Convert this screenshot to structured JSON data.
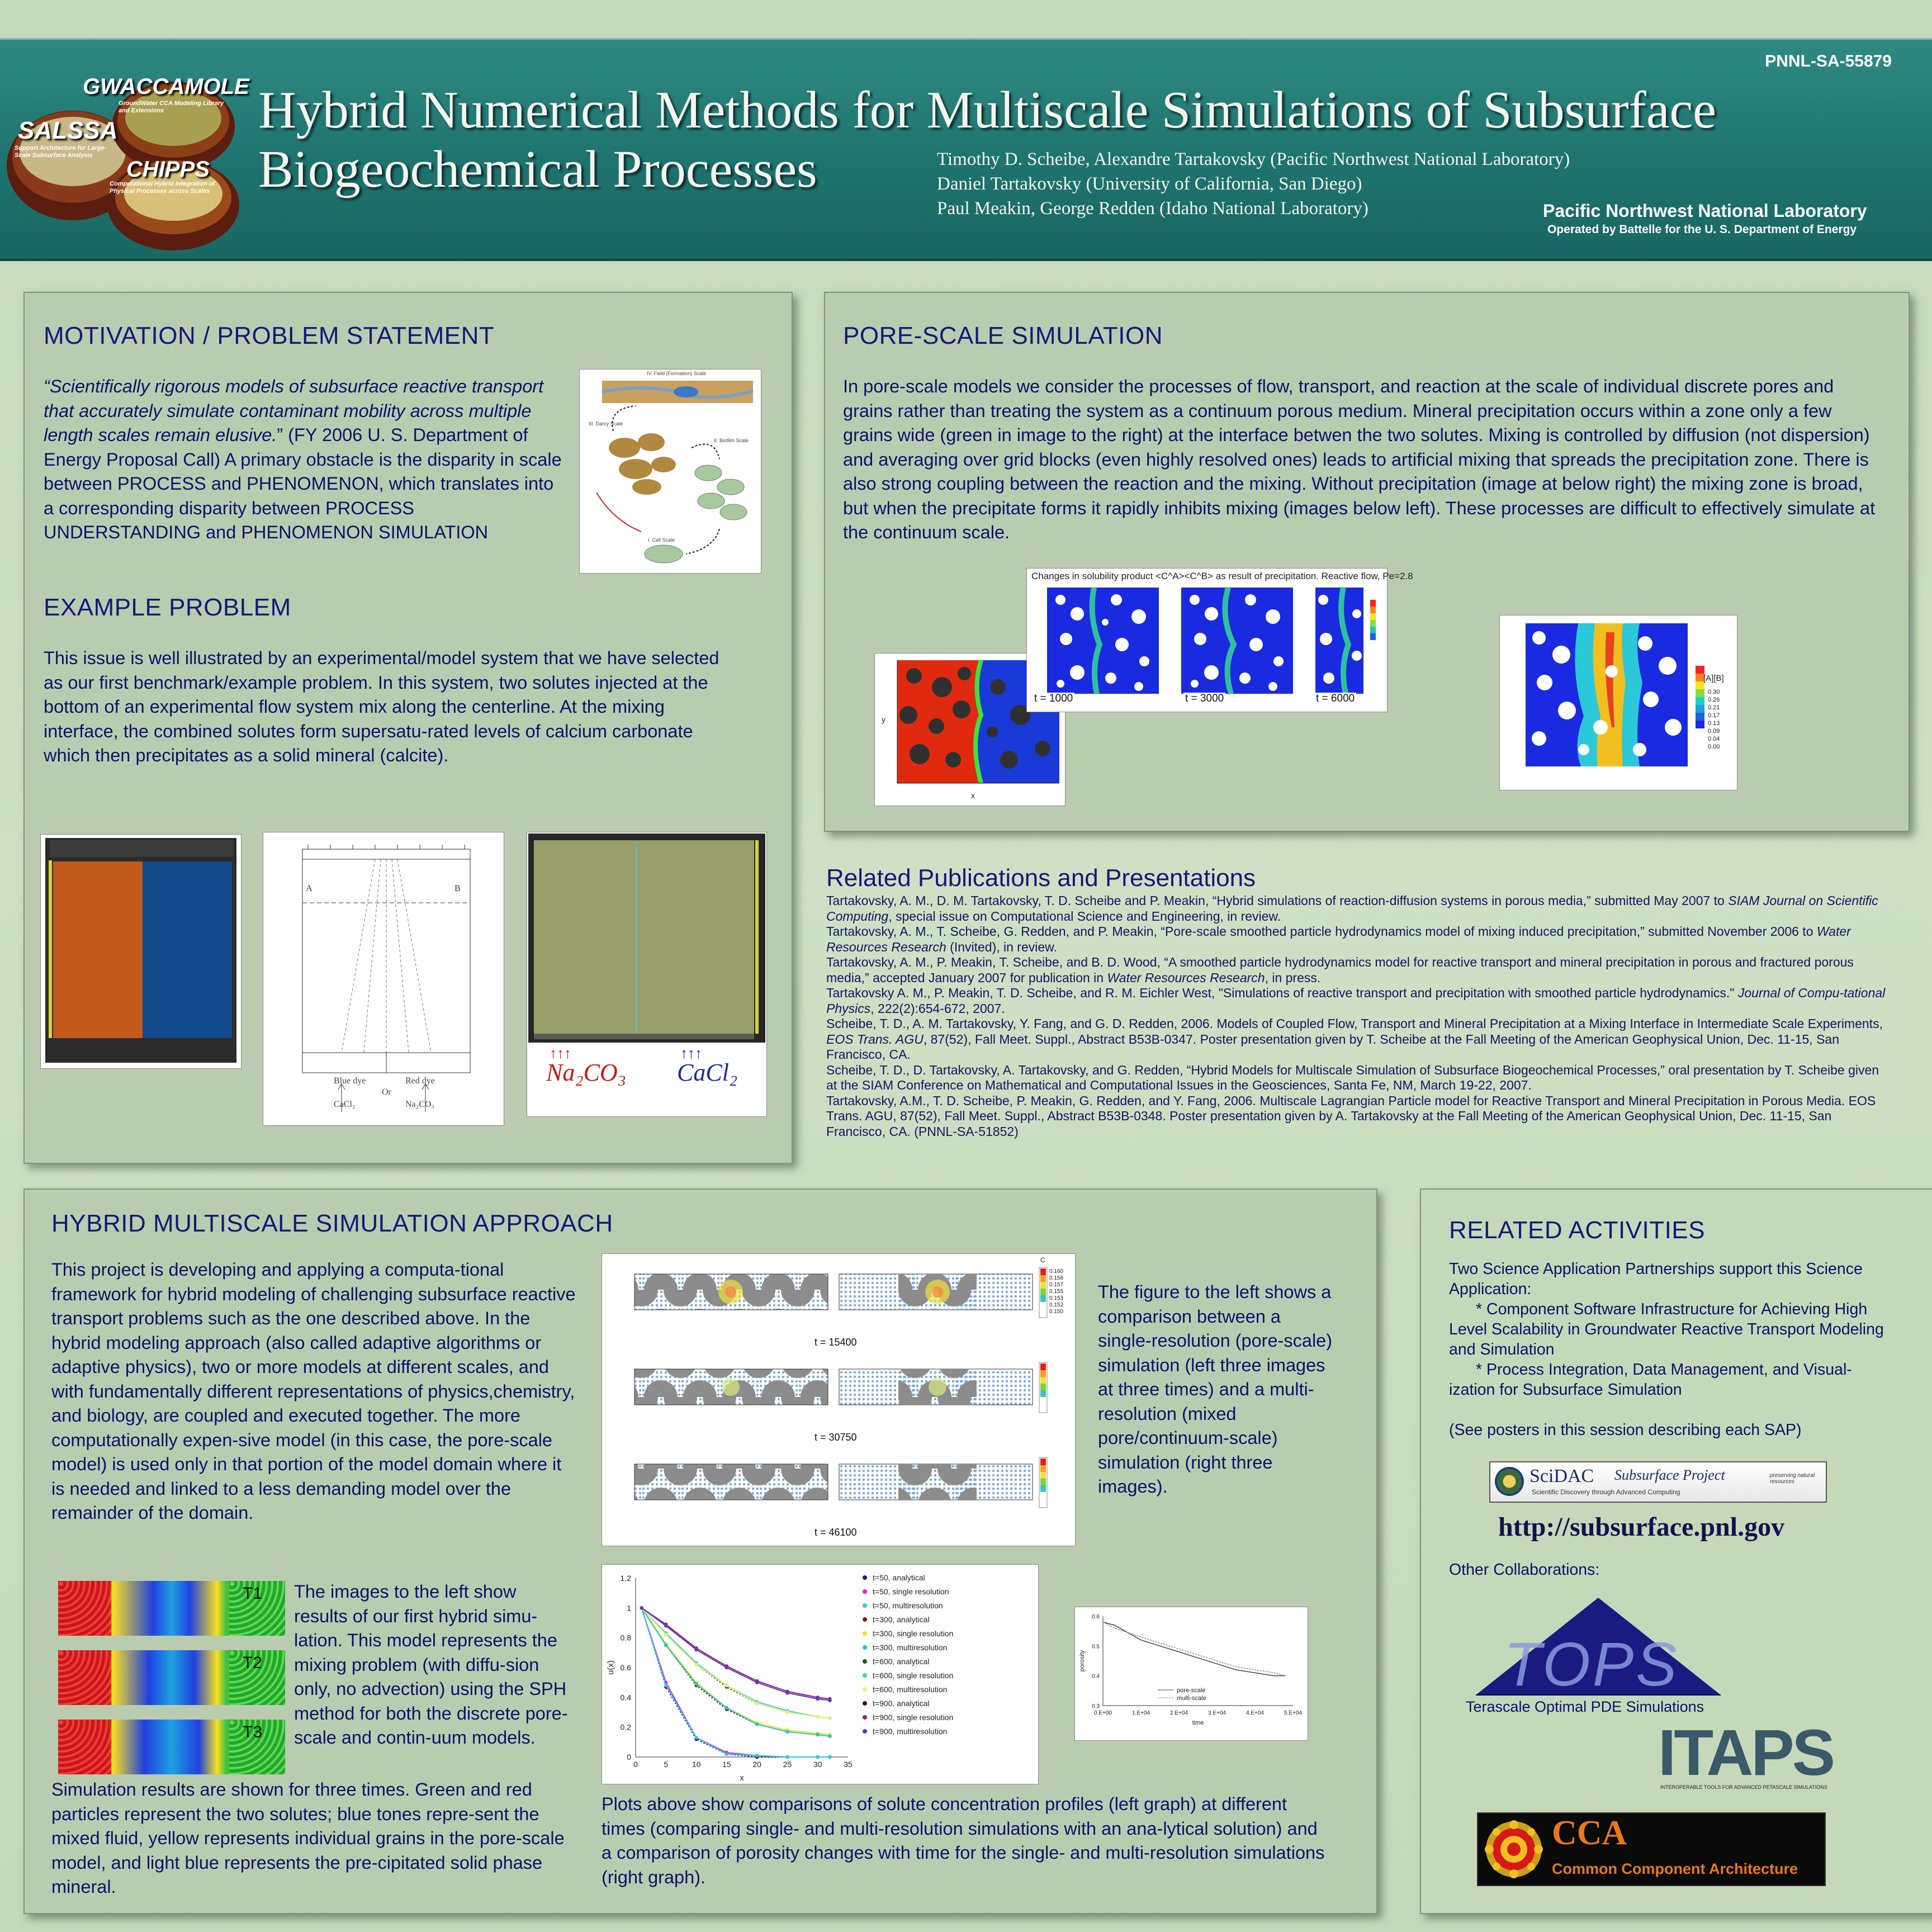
{
  "header": {
    "report_number": "PNNL-SA-55879",
    "title_line1": "Hybrid Numerical Methods for Multiscale Simulations of Subsurface",
    "title_line2": "Biogeochemical Processes",
    "authors": [
      "Timothy D. Scheibe, Alexandre Tartakovsky (Pacific Northwest National Laboratory)",
      "Daniel Tartakovsky (University of California, San Diego)",
      "Paul Meakin, George Redden (Idaho National Laboratory)"
    ],
    "lab_name": "Pacific Northwest National Laboratory",
    "lab_sub": "Operated by Battelle for the U. S. Department of Energy",
    "logo": {
      "gwaccamole": "GWACCAMOLE",
      "gwaccamole_sub": "GroundWater CCA Modeling Library and Extensions",
      "salssa": "SALSSA",
      "salssa_sub": "Support Architecture for Large-Scale Subsurface Analysis",
      "chipps": "CHIPPS",
      "chipps_sub": "Computational Hybrid Integration of Physical Processes across Scales"
    }
  },
  "motivation": {
    "heading": "MOTIVATION / PROBLEM STATEMENT",
    "quote": "“Scientifically rigorous models of subsurface reactive transport that accurately simulate contaminant mobility across multiple length scales remain elusive.",
    "rest": "”  (FY 2006 U. S. Department of Energy Proposal Call)  A primary obstacle is the disparity in scale between PROCESS and PHENOMENON, which translates into a corresponding disparity between PROCESS UNDERSTANDING and PHENOMENON SIMULATION",
    "scale_labels": [
      "I. Cell Scale",
      "II. Biofilm Scale",
      "III. Darcy Scale",
      "IV. Field (Formation) Scale"
    ]
  },
  "example": {
    "heading": "EXAMPLE PROBLEM",
    "text": "This issue is well illustrated by an experimental/model system that we have selected as our first benchmark/example problem.  In this system, two solutes injected at the bottom of an experimental flow system mix along the centerline.  At the mixing interface, the combined solutes form supersatu-rated levels of calcium carbonate which then precipitates as a solid mineral (calcite).",
    "diagram": {
      "a": "A",
      "b": "B",
      "blue": "Blue dye",
      "cacl": "CaCl₂",
      "or": "Or",
      "red": "Red dye",
      "na": "Na₂CO₃"
    },
    "na2co3": "Na₂CO₃",
    "cacl2": "CaCl₂"
  },
  "pore": {
    "heading": "PORE-SCALE SIMULATION",
    "text": "In pore-scale models we consider the processes of flow, transport, and reaction at the scale of individual discrete pores and grains rather than treating the system as a continuum porous medium.  Mineral precipitation occurs within a zone only a few grains wide (green in image to the right) at the interface betwen the two solutes.  Mixing is controlled by diffusion (not dispersion) and averaging over grid blocks (even highly resolved ones) leads to artificial mixing that spreads the precipitation zone.  There is also strong coupling between the reaction and the mixing.  Without precipitation (image at below right) the mixing zone is broad, but when the precipitate forms it rapidly inhibits mixing (images below left).  These processes are difficult to effectively simulate at the continuum scale.",
    "fig_caption": "Changes in solubility product <C^A><C^B> as result of precipitation. Reactive flow, Pe=2.8",
    "times": [
      "t = 1000",
      "t = 3000",
      "t = 6000"
    ],
    "colorbar_label": "[A][B]",
    "colorbar_values": [
      "0.30",
      "0.26",
      "0.21",
      "0.17",
      "0.13",
      "0.09",
      "0.04",
      "0.00"
    ],
    "axis_x": "x",
    "axis_y": "y"
  },
  "publications": {
    "heading": "Related Publications and Presentations",
    "entries": [
      [
        "Tartakovsky, A. M., D. M. Tartakovsky, T. D. Scheibe and P. Meakin, “Hybrid simulations of reaction-diffusion systems in porous media,” submitted May 2007 to ",
        "SIAM Journal on Scientific Computing",
        ", special issue on Computational Science and Engineering, in review."
      ],
      [
        "Tartakovsky, A. M., T. Scheibe, G. Redden, and P. Meakin, “Pore-scale smoothed particle hydrodynamics model of mixing induced precipitation,” submitted November 2006 to ",
        "Water Resources Research",
        " (Invited), in review."
      ],
      [
        "Tartakovsky, A. M., P. Meakin, T. Scheibe, and B. D. Wood, “A smoothed particle hydrodynamics model for reactive transport and mineral precipitation in porous and fractured porous media,” accepted January 2007 for publication in ",
        "Water Resources Research",
        ", in press."
      ],
      [
        "Tartakovsky A. M., P. Meakin, T. D. Scheibe, and R. M. Eichler West, \"Simulations of reactive transport and precipitation with smoothed particle hydrodynamics.\"  ",
        "Journal of Compu-tational Physics",
        ", 222(2):654-672, 2007."
      ],
      [
        "Scheibe, T. D., A. M. Tartakovsky, Y. Fang, and G. D. Redden, 2006.  Models of Coupled Flow, Transport and Mineral Precipitation at a Mixing Interface in Intermediate Scale Experiments, ",
        "EOS Trans. AGU",
        ", 87(52), Fall Meet. Suppl., Abstract B53B-0347.  Poster presentation given by T. Scheibe at the Fall Meeting of the American Geophysical Union, Dec. 11-15, San Francisco, CA."
      ],
      [
        "Scheibe, T. D., D. Tartakovsky, A. Tartakovsky, and G. Redden, “Hybrid Models for Multiscale Simulation of Subsurface Biogeochemical Processes,” oral presentation by T. Scheibe given at the SIAM Conference on Mathematical and Computational Issues in the Geosciences, Santa Fe, NM, March 19-22, 2007.",
        "",
        ""
      ],
      [
        "Tartakovsky, A.M., T. D. Scheibe, P. Meakin, G. Redden, and Y. Fang, 2006. Multiscale Lagrangian Particle model for Reactive Transport and Mineral Precipitation in Porous Media. EOS Trans. AGU, 87(52), Fall Meet. Suppl., Abstract B53B-0348.  Poster presentation given by A. Tartakovsky at the Fall Meeting of the American Geophysical Union, Dec. 11-15, San Francisco, CA.  (PNNL-SA-51852)",
        "",
        ""
      ]
    ]
  },
  "hybrid": {
    "heading": "HYBRID MULTISCALE SIMULATION APPROACH",
    "text1": "This project is developing and applying a computa-tional framework for hybrid modeling of challenging subsurface reactive transport problems such as the one described above.  In the hybrid modeling approach (also called adaptive algorithms or adaptive physics), two or more models at different scales, and with fundamentally different representations of physics,chemistry, and biology, are coupled and executed together.  The more computationally expen-sive model (in this case, the pore-scale model) is used only in that portion of the model domain where it is needed and linked to a less demanding model over the remainder of the domain.",
    "text2": "The images to the left show results of our first hybrid simu-lation.  This model represents the mixing problem (with diffu-sion only, no advection) using the SPH method for both the discrete pore-scale and contin-uum models.",
    "text3": "Simulation results are shown for three times. Green and red particles represent the two solutes; blue tones repre-sent the mixed fluid, yellow represents individual grains in the pore-scale model, and light blue represents the pre-cipitated solid phase mineral.",
    "t_labels": [
      "T1",
      "T2",
      "T3"
    ],
    "figure_text": "The figure to the left shows a comparison between a single-resolution (pore-scale) simulation (left three images at three times) and a multi-resolution (mixed pore/continuum-scale) simulation (right three images).",
    "times": [
      "t = 15400",
      "t = 30750",
      "t = 46100"
    ],
    "colorbar_title": "C",
    "colorbar_values": [
      "0.160",
      "0.158",
      "0.157",
      "0.155",
      "0.153",
      "0.152",
      "0.150"
    ],
    "plots_text": "Plots above show comparisons of solute concentration profiles (left graph) at different times (comparing single- and multi-resolution simulations with an ana-lytical solution) and a comparison of porosity changes with time for the single- and multi-resolution simulations (right graph)."
  },
  "chart_data": [
    {
      "type": "line",
      "xlabel": "x",
      "ylabel": "u(x)",
      "xlim": [
        0,
        35
      ],
      "ylim": [
        0,
        1.2
      ],
      "xticks": [
        0,
        5,
        10,
        15,
        20,
        25,
        30,
        35
      ],
      "yticks": [
        0,
        0.2,
        0.4,
        0.6,
        0.8,
        1,
        1.2
      ],
      "x": [
        1,
        5,
        10,
        15,
        20,
        25,
        30,
        32
      ],
      "series": [
        {
          "name": "t=50, analytical",
          "color": "#1a1a7a",
          "values": [
            1.0,
            0.47,
            0.12,
            0.02,
            0.0,
            0.0,
            0.0,
            0.0
          ]
        },
        {
          "name": "t=50, single resolution",
          "color": "#e020e0",
          "values": [
            1.0,
            0.5,
            0.13,
            0.03,
            0.01,
            0.0,
            0.0,
            0.0
          ]
        },
        {
          "name": "t=50, multiresolution",
          "color": "#30c8d8",
          "values": [
            1.0,
            0.48,
            0.13,
            0.02,
            0.01,
            0.0,
            0.0,
            0.0
          ]
        },
        {
          "name": "t=300, analytical",
          "color": "#7a2020",
          "values": [
            1.0,
            0.75,
            0.48,
            0.32,
            0.22,
            0.17,
            0.15,
            0.14
          ]
        },
        {
          "name": "t=300, single resolution",
          "color": "#e8e820",
          "values": [
            1.0,
            0.76,
            0.5,
            0.33,
            0.23,
            0.18,
            0.16,
            0.15
          ]
        },
        {
          "name": "t=300, multiresolution",
          "color": "#20c8c8",
          "values": [
            1.0,
            0.75,
            0.49,
            0.33,
            0.22,
            0.17,
            0.15,
            0.14
          ]
        },
        {
          "name": "t=600, analytical",
          "color": "#1a5a1a",
          "values": [
            1.0,
            0.82,
            0.62,
            0.47,
            0.36,
            0.3,
            0.27,
            0.26
          ]
        },
        {
          "name": "t=600, single resolution",
          "color": "#40d0d0",
          "values": [
            1.0,
            0.83,
            0.63,
            0.48,
            0.37,
            0.31,
            0.27,
            0.26
          ]
        },
        {
          "name": "t=600, multiresolution",
          "color": "#f0f070",
          "values": [
            1.0,
            0.82,
            0.62,
            0.48,
            0.36,
            0.3,
            0.27,
            0.26
          ]
        },
        {
          "name": "t=900, analytical",
          "color": "#3a0a3a",
          "values": [
            1.0,
            0.88,
            0.72,
            0.6,
            0.5,
            0.43,
            0.39,
            0.38
          ]
        },
        {
          "name": "t=900, single resolution",
          "color": "#8a208a",
          "values": [
            1.0,
            0.89,
            0.73,
            0.61,
            0.51,
            0.44,
            0.4,
            0.39
          ]
        },
        {
          "name": "t=900, multiresolution",
          "color": "#6a3ab0",
          "values": [
            1.0,
            0.88,
            0.72,
            0.6,
            0.5,
            0.43,
            0.39,
            0.38
          ]
        }
      ]
    },
    {
      "type": "line",
      "xlabel": "time",
      "ylabel": "porosity",
      "xlim": [
        0,
        50000
      ],
      "ylim": [
        0.3,
        0.6
      ],
      "xtick_labels": [
        "0.E+00",
        "1.E+04",
        "2.E+04",
        "3.E+04",
        "4.E+04",
        "5.E+04"
      ],
      "ytick_labels": [
        "0.3",
        "0.4",
        "0.5",
        "0.6"
      ],
      "x": [
        0,
        3000,
        10000,
        15000,
        20000,
        25000,
        30000,
        35000,
        40000,
        45000,
        48000
      ],
      "series": [
        {
          "name": "pore-scale",
          "values": [
            0.58,
            0.57,
            0.52,
            0.5,
            0.48,
            0.46,
            0.44,
            0.42,
            0.41,
            0.4,
            0.4
          ]
        },
        {
          "name": "multi-scale",
          "values": [
            0.58,
            0.56,
            0.53,
            0.51,
            0.49,
            0.47,
            0.45,
            0.43,
            0.42,
            0.41,
            0.4
          ]
        }
      ]
    }
  ],
  "related": {
    "heading": "RELATED ACTIVITIES",
    "intro": "Two Science Application Partnerships support this Science Application:",
    "item1": "* Component Software Infrastructure for Achieving High Level Scalability in Groundwater Reactive Transport Modeling and Simulation",
    "item2": "* Process Integration, Data Management, and Visual-ization for Subsurface Simulation",
    "note": "(See posters in this session describing each SAP)",
    "scidac": "SciDAC",
    "scidac_project": "Subsurface Project",
    "scidac_sub": "Scientific Discovery through Advanced Computing",
    "scidac_tag": "preserving natural resources",
    "url": "http://subsurface.pnl.gov",
    "other": "Other Collaborations:",
    "tops": "TOPS",
    "tops_sub": "Terascale Optimal PDE Simulations",
    "itaps": "ITAPS",
    "itaps_sub": "INTEROPERABLE TOOLS FOR ADVANCED PETASCALE SIMULATIONS",
    "cca": "CCA",
    "cca_sub": "Common Component Architecture"
  }
}
